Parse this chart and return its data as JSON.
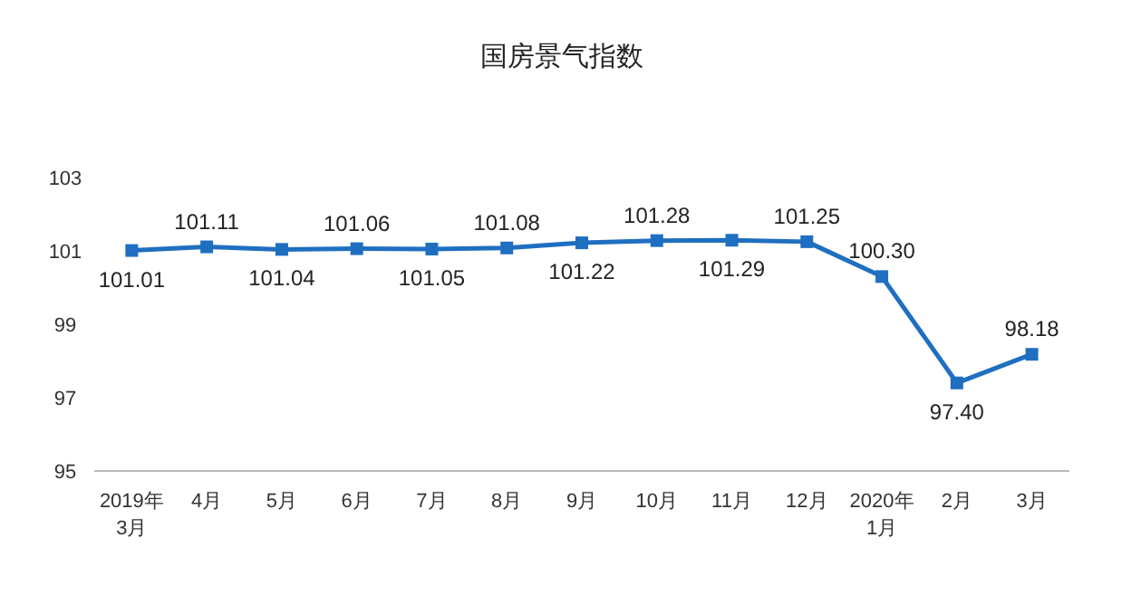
{
  "chart_data": {
    "type": "line",
    "title": "国房景气指数",
    "categories": [
      "2019年\n3月",
      "4月",
      "5月",
      "6月",
      "7月",
      "8月",
      "9月",
      "10月",
      "11月",
      "12月",
      "2020年\n1月",
      "2月",
      "3月"
    ],
    "series": [
      {
        "color": "#1f6fc1",
        "values": [
          101.01,
          101.11,
          101.04,
          101.06,
          101.05,
          101.08,
          101.22,
          101.28,
          101.29,
          101.25,
          100.3,
          97.4,
          98.18
        ],
        "value_labels": [
          "101.01",
          "101.11",
          "101.04",
          "101.06",
          "101.05",
          "101.08",
          "101.22",
          "101.28",
          "101.29",
          "101.25",
          "100.30",
          "97.40",
          "98.18"
        ]
      }
    ],
    "ylim": [
      95,
      103
    ],
    "yticks": [
      95,
      97,
      99,
      101,
      103
    ],
    "marker": "square",
    "line_style": "solid",
    "grid": false
  }
}
